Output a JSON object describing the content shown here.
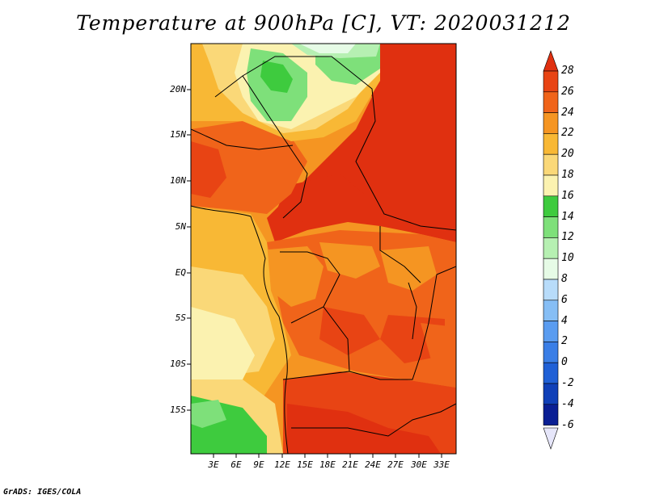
{
  "title": "Temperature at 900hPa [C], VT: 2020031212",
  "footer": "GrADS: IGES/COLA",
  "map": {
    "lat_labels": [
      "20N",
      "15N",
      "10N",
      "5N",
      "EQ",
      "5S",
      "10S",
      "15S"
    ],
    "lon_labels": [
      "3E",
      "6E",
      "9E",
      "12E",
      "15E",
      "18E",
      "21E",
      "24E",
      "27E",
      "30E",
      "33E"
    ]
  },
  "colorbar": {
    "levels": [
      "28",
      "26",
      "24",
      "22",
      "20",
      "18",
      "16",
      "14",
      "12",
      "10",
      "8",
      "6",
      "4",
      "2",
      "0",
      "-2",
      "-4",
      "-6"
    ],
    "colors": {
      "above_28": "#e03010",
      "26_28": "#e84414",
      "24_26": "#f0641a",
      "22_24": "#f59522",
      "20_22": "#f8b835",
      "18_20": "#fad878",
      "16_18": "#fbf2b0",
      "14_16": "#3ecb3e",
      "12_14": "#7ee07a",
      "10_12": "#b6f0b2",
      "8_10": "#e6fbe6",
      "6_8": "#b8dcfa",
      "4_6": "#86bef5",
      "2_4": "#5a9cf0",
      "0_2": "#3a7ee6",
      "-2_0": "#2060d6",
      "-4_-2": "#1040b8",
      "-6_-4": "#0a1f94",
      "below_-6": "#061060"
    }
  }
}
